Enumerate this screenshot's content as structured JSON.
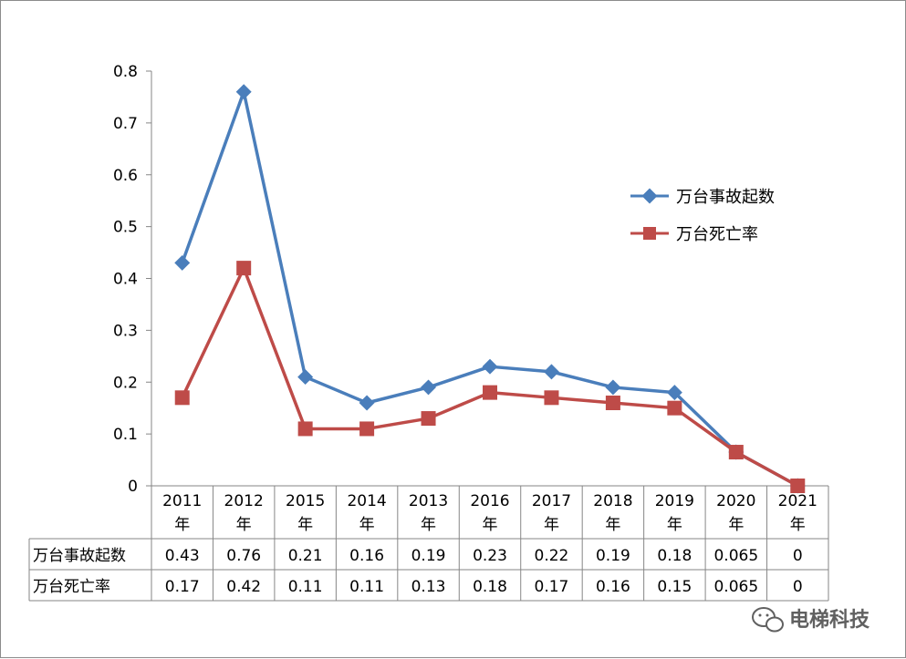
{
  "chart_data": {
    "type": "line",
    "categories": [
      "2011年",
      "2012年",
      "2015年",
      "2014年",
      "2013年",
      "2016年",
      "2017年",
      "2018年",
      "2019年",
      "2020年",
      "2021年"
    ],
    "series": [
      {
        "name": "万台事故起数",
        "values": [
          0.43,
          0.76,
          0.21,
          0.16,
          0.19,
          0.23,
          0.22,
          0.19,
          0.18,
          0.065,
          0
        ],
        "color": "#4a7ebb",
        "marker": "diamond"
      },
      {
        "name": "万台死亡率",
        "values": [
          0.17,
          0.42,
          0.11,
          0.11,
          0.13,
          0.18,
          0.17,
          0.16,
          0.15,
          0.065,
          0
        ],
        "color": "#be4b48",
        "marker": "square"
      }
    ],
    "yticks": [
      "0",
      "0.1",
      "0.2",
      "0.3",
      "0.4",
      "0.5",
      "0.6",
      "0.7",
      "0.8"
    ],
    "ylim": [
      0,
      0.8
    ],
    "grid": false,
    "legend": "right",
    "data_table": {
      "rows": [
        {
          "label": "万台事故起数",
          "cells": [
            "0.43",
            "0.76",
            "0.21",
            "0.16",
            "0.19",
            "0.23",
            "0.22",
            "0.19",
            "0.18",
            "0.065",
            "0"
          ]
        },
        {
          "label": "万台死亡率",
          "cells": [
            "0.17",
            "0.42",
            "0.11",
            "0.11",
            "0.13",
            "0.18",
            "0.17",
            "0.16",
            "0.15",
            "0.065",
            "0"
          ]
        }
      ]
    }
  },
  "watermark": {
    "text": "电梯科技",
    "icon": "wechat-icon"
  }
}
